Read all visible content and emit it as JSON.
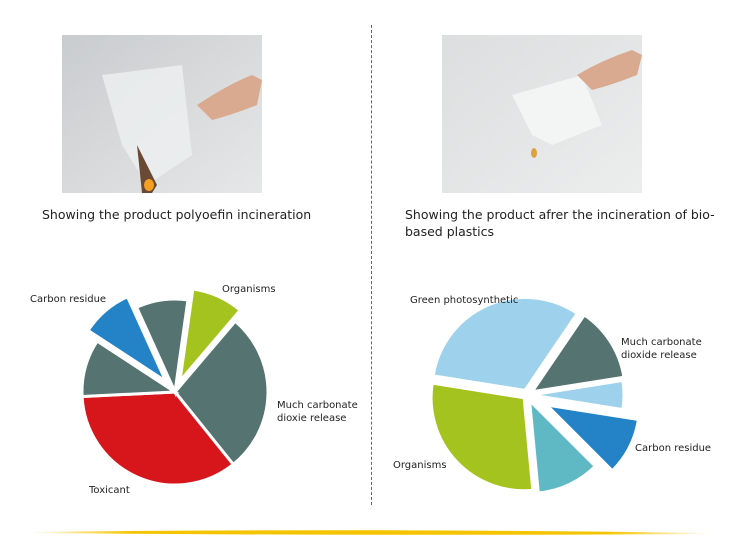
{
  "left": {
    "caption": "Showing the product polyoefin incineration",
    "photo_alt": "PET/PE bag burning"
  },
  "right": {
    "caption": "Showing the product afrer the incineration of bio-based plastics"
  },
  "chart_data": [
    {
      "type": "pie",
      "title": "",
      "slices": [
        {
          "label": "Organisms",
          "value": 9,
          "color": "#a5c31f"
        },
        {
          "label": "Much carbonate dioxie release",
          "value": 28,
          "color": "#557370"
        },
        {
          "label": "Toxicant",
          "value": 35,
          "color": "#d7161c"
        },
        {
          "label": "",
          "value": 10,
          "color": "#557370"
        },
        {
          "label": "Carbon residue",
          "value": 9,
          "color": "#2383c6"
        },
        {
          "label": "",
          "value": 9,
          "color": "#557370"
        }
      ]
    },
    {
      "type": "pie",
      "title": "",
      "slices": [
        {
          "label": "Green photosynthetic",
          "value": 32,
          "color": "#9ed2ec"
        },
        {
          "label": "Much carbonate dioxide release",
          "value": 13,
          "color": "#557370"
        },
        {
          "label": "",
          "value": 5,
          "color": "#9ed2ec"
        },
        {
          "label": "Carbon residue",
          "value": 10,
          "color": "#2383c6"
        },
        {
          "label": "",
          "value": 11,
          "color": "#5fb9c4"
        },
        {
          "label": "Organisms",
          "value": 29,
          "color": "#a5c31f"
        }
      ]
    }
  ],
  "colors": {
    "accent_stroke": "#f5c400",
    "divider": "#666666"
  }
}
